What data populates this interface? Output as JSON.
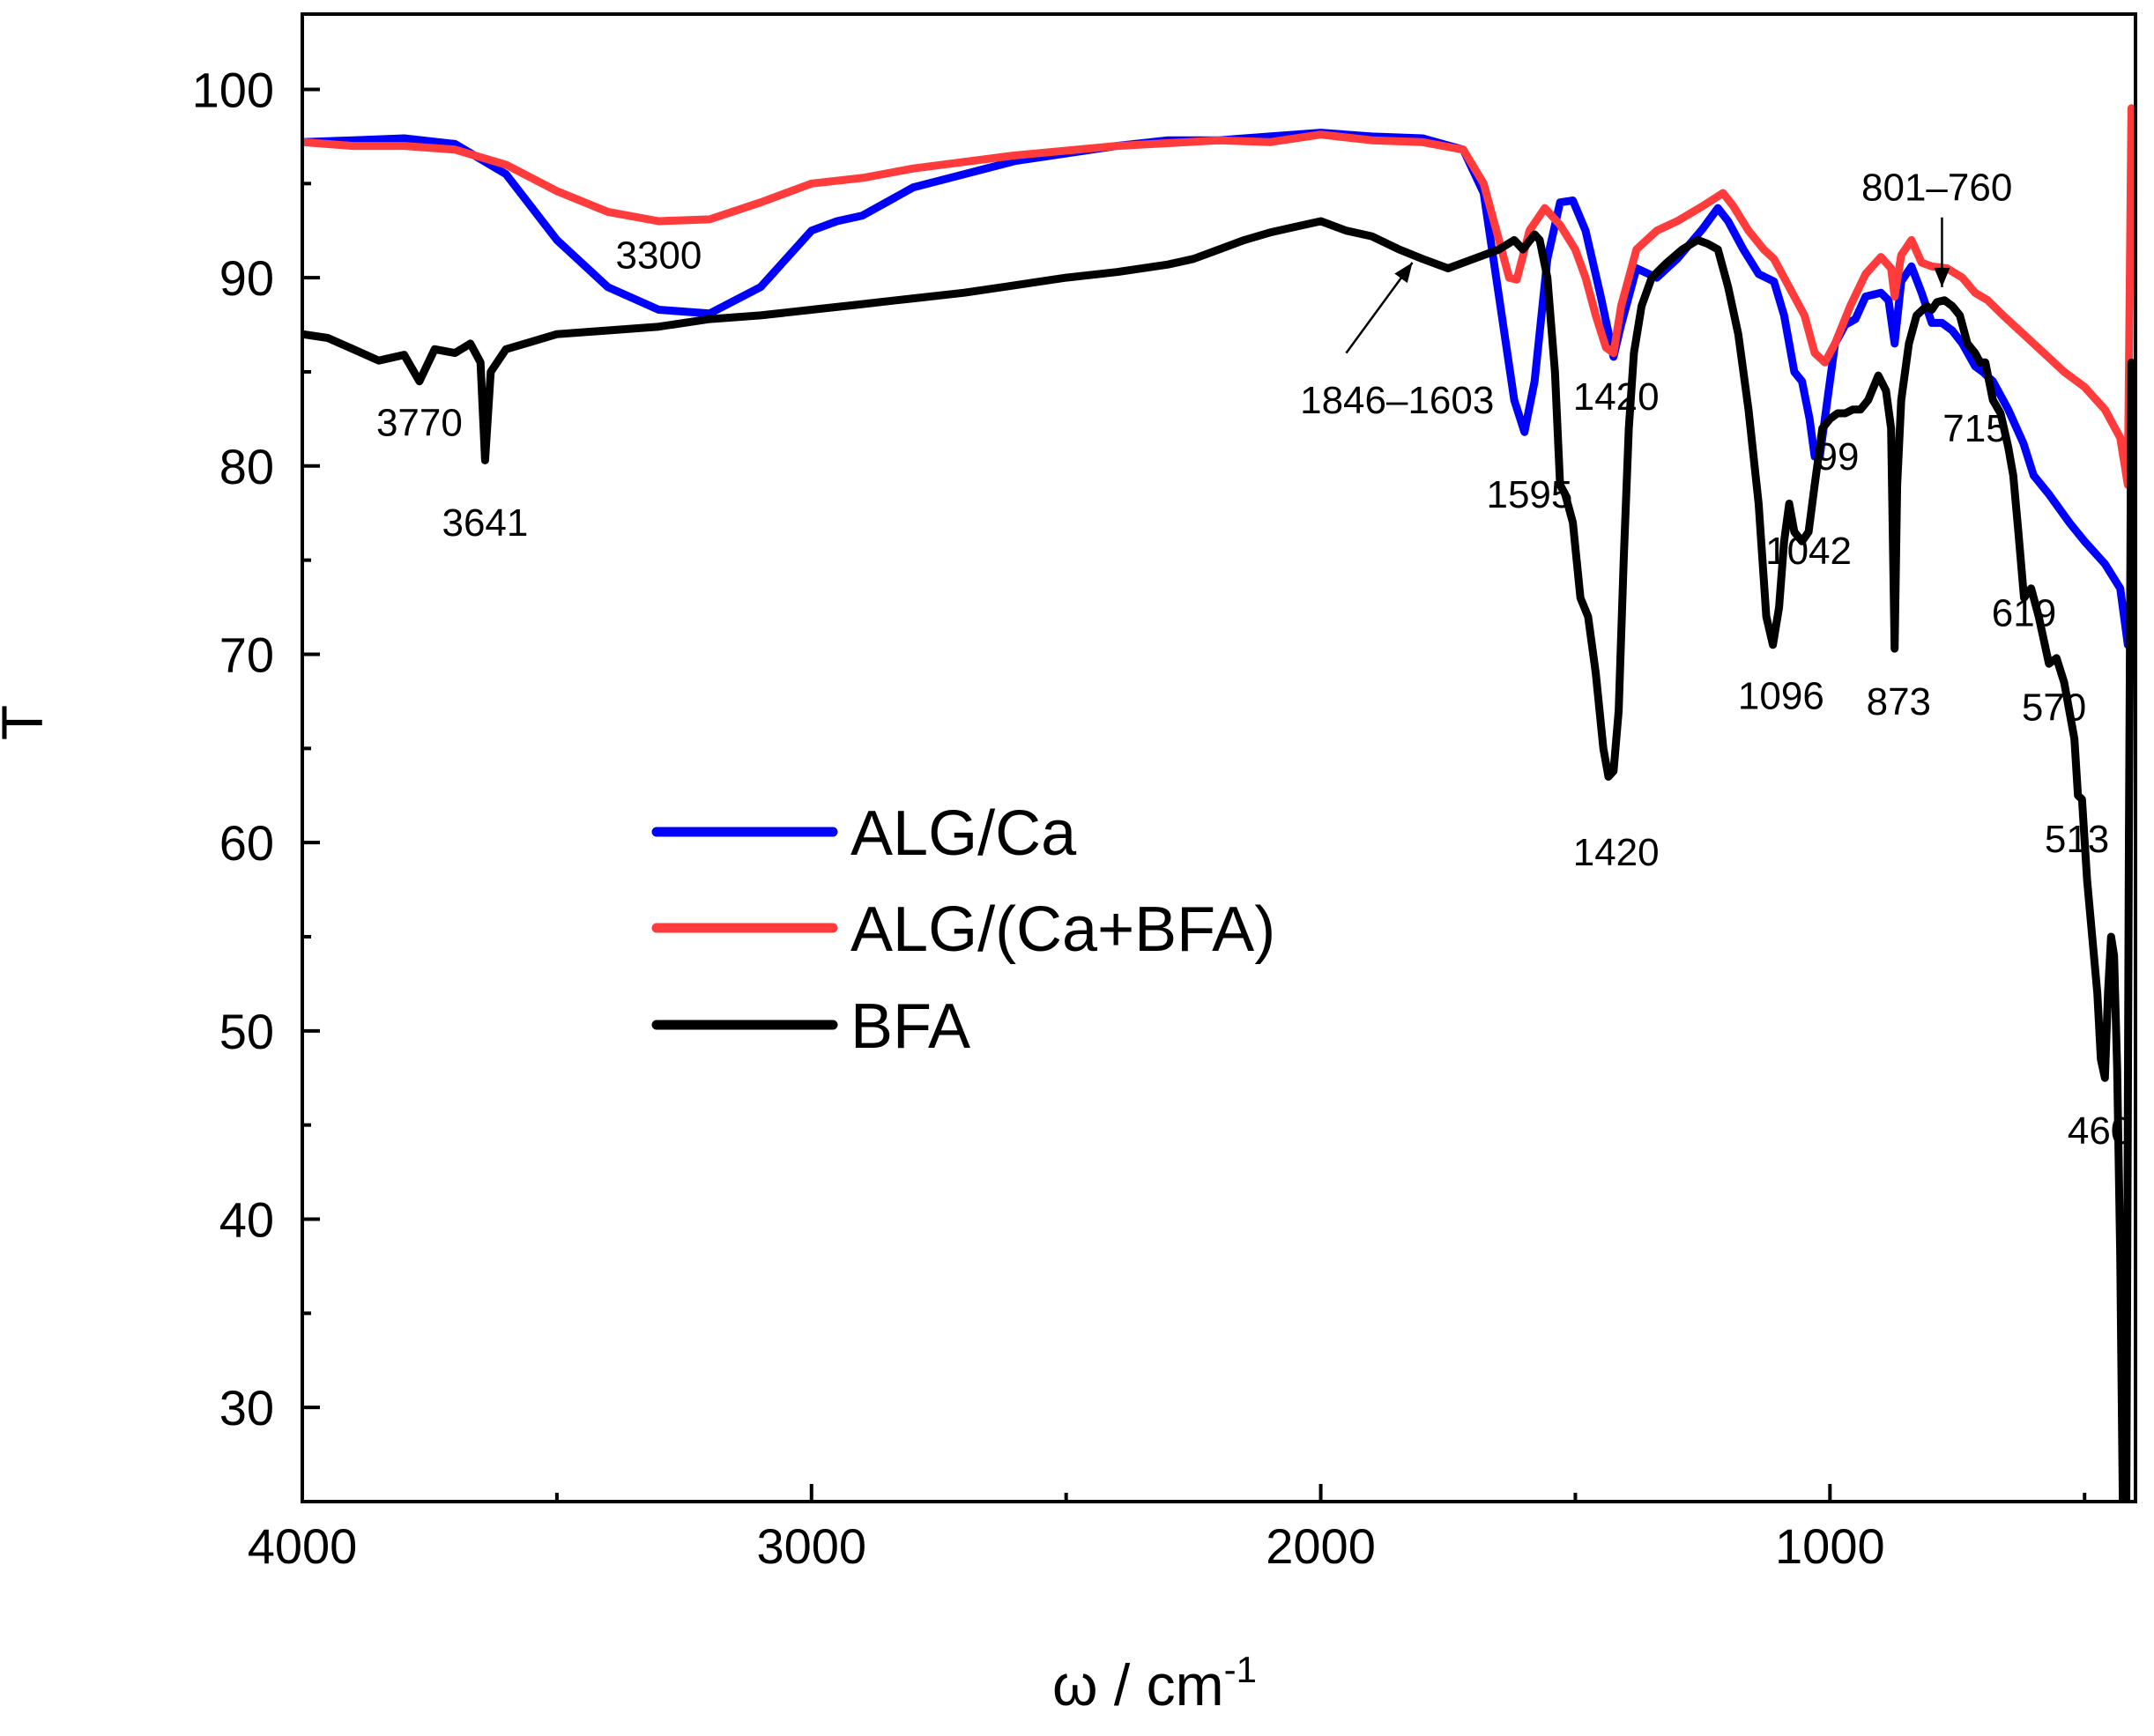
{
  "chart_data": {
    "type": "line",
    "title": "",
    "xlabel": "ω / cm",
    "xlabel_sup": "-1",
    "ylabel": "T",
    "xlim": [
      4000,
      400
    ],
    "ylim": [
      25,
      104
    ],
    "x_ticks": [
      4000,
      3000,
      2000,
      1000
    ],
    "x_tick_labels": [
      "4000",
      "3000",
      "2000",
      "1000"
    ],
    "y_ticks": [
      30,
      40,
      50,
      60,
      70,
      80,
      90,
      100
    ],
    "y_tick_labels": [
      "30",
      "40",
      "50",
      "60",
      "70",
      "80",
      "90",
      "100"
    ],
    "legend_position": "center-left",
    "series": [
      {
        "name": "ALG/Ca",
        "color": "#0000ff",
        "points": [
          [
            4000,
            97.2
          ],
          [
            3900,
            97.3
          ],
          [
            3800,
            97.4
          ],
          [
            3700,
            97.1
          ],
          [
            3600,
            95.5
          ],
          [
            3500,
            92.0
          ],
          [
            3400,
            89.5
          ],
          [
            3300,
            88.3
          ],
          [
            3200,
            88.1
          ],
          [
            3100,
            89.5
          ],
          [
            3000,
            92.5
          ],
          [
            2950,
            93.0
          ],
          [
            2900,
            93.3
          ],
          [
            2800,
            94.8
          ],
          [
            2600,
            96.2
          ],
          [
            2400,
            97.0
          ],
          [
            2300,
            97.3
          ],
          [
            2200,
            97.3
          ],
          [
            2100,
            97.5
          ],
          [
            2000,
            97.7
          ],
          [
            1900,
            97.5
          ],
          [
            1800,
            97.4
          ],
          [
            1720,
            96.8
          ],
          [
            1680,
            94.5
          ],
          [
            1650,
            89.0
          ],
          [
            1620,
            83.5
          ],
          [
            1600,
            81.8
          ],
          [
            1580,
            84.5
          ],
          [
            1555,
            91.0
          ],
          [
            1530,
            94.0
          ],
          [
            1505,
            94.1
          ],
          [
            1480,
            92.5
          ],
          [
            1450,
            89.0
          ],
          [
            1425,
            85.8
          ],
          [
            1410,
            87.5
          ],
          [
            1380,
            90.5
          ],
          [
            1340,
            90.0
          ],
          [
            1300,
            91.0
          ],
          [
            1250,
            92.6
          ],
          [
            1220,
            93.7
          ],
          [
            1200,
            93.0
          ],
          [
            1170,
            91.5
          ],
          [
            1140,
            90.2
          ],
          [
            1110,
            89.8
          ],
          [
            1090,
            88.0
          ],
          [
            1070,
            85.0
          ],
          [
            1055,
            84.5
          ],
          [
            1040,
            82.5
          ],
          [
            1030,
            80.5
          ],
          [
            1020,
            80.5
          ],
          [
            1005,
            83.5
          ],
          [
            990,
            86.5
          ],
          [
            970,
            87.5
          ],
          [
            950,
            87.8
          ],
          [
            930,
            89.0
          ],
          [
            900,
            89.2
          ],
          [
            885,
            88.8
          ],
          [
            873,
            86.5
          ],
          [
            860,
            89.8
          ],
          [
            840,
            90.6
          ],
          [
            820,
            89.2
          ],
          [
            800,
            87.6
          ],
          [
            780,
            87.6
          ],
          [
            760,
            87.2
          ],
          [
            740,
            86.5
          ],
          [
            715,
            85.3
          ],
          [
            700,
            85.0
          ],
          [
            680,
            84.5
          ],
          [
            650,
            83.0
          ],
          [
            620,
            81.2
          ],
          [
            600,
            79.5
          ],
          [
            570,
            78.5
          ],
          [
            530,
            77.0
          ],
          [
            500,
            76.0
          ],
          [
            460,
            74.8
          ],
          [
            430,
            73.5
          ],
          [
            415,
            70.5
          ]
        ]
      },
      {
        "name": "ALG/(Ca+BFA)",
        "color": "#ff3b3b",
        "points": [
          [
            4000,
            97.2
          ],
          [
            3900,
            97.0
          ],
          [
            3800,
            97.0
          ],
          [
            3700,
            96.8
          ],
          [
            3600,
            96.0
          ],
          [
            3500,
            94.6
          ],
          [
            3400,
            93.5
          ],
          [
            3300,
            93.0
          ],
          [
            3200,
            93.1
          ],
          [
            3100,
            94.0
          ],
          [
            3000,
            95.0
          ],
          [
            2900,
            95.3
          ],
          [
            2800,
            95.8
          ],
          [
            2600,
            96.5
          ],
          [
            2400,
            97.0
          ],
          [
            2200,
            97.3
          ],
          [
            2100,
            97.2
          ],
          [
            2000,
            97.6
          ],
          [
            1900,
            97.3
          ],
          [
            1800,
            97.2
          ],
          [
            1720,
            96.8
          ],
          [
            1680,
            95.0
          ],
          [
            1650,
            92.0
          ],
          [
            1630,
            90.0
          ],
          [
            1615,
            89.9
          ],
          [
            1590,
            92.5
          ],
          [
            1560,
            93.7
          ],
          [
            1530,
            92.8
          ],
          [
            1500,
            91.5
          ],
          [
            1480,
            90.0
          ],
          [
            1460,
            88.0
          ],
          [
            1440,
            86.3
          ],
          [
            1425,
            86.0
          ],
          [
            1410,
            88.5
          ],
          [
            1380,
            91.5
          ],
          [
            1340,
            92.5
          ],
          [
            1300,
            93.0
          ],
          [
            1250,
            93.8
          ],
          [
            1210,
            94.5
          ],
          [
            1190,
            93.8
          ],
          [
            1160,
            92.5
          ],
          [
            1130,
            91.5
          ],
          [
            1110,
            91.0
          ],
          [
            1080,
            89.5
          ],
          [
            1050,
            88.0
          ],
          [
            1030,
            86.0
          ],
          [
            1010,
            85.5
          ],
          [
            990,
            86.5
          ],
          [
            960,
            88.5
          ],
          [
            930,
            90.2
          ],
          [
            900,
            91.1
          ],
          [
            880,
            90.5
          ],
          [
            873,
            89.0
          ],
          [
            860,
            91.2
          ],
          [
            840,
            92.0
          ],
          [
            820,
            90.8
          ],
          [
            800,
            90.6
          ],
          [
            770,
            90.5
          ],
          [
            740,
            90.0
          ],
          [
            715,
            89.2
          ],
          [
            690,
            88.8
          ],
          [
            660,
            88.0
          ],
          [
            620,
            87.0
          ],
          [
            580,
            86.0
          ],
          [
            540,
            85.0
          ],
          [
            500,
            84.2
          ],
          [
            460,
            83.0
          ],
          [
            430,
            81.5
          ],
          [
            415,
            79.0
          ],
          [
            408,
            99.0
          ]
        ]
      },
      {
        "name": "BFA",
        "color": "#000000",
        "points": [
          [
            4000,
            87.0
          ],
          [
            3950,
            86.8
          ],
          [
            3900,
            86.2
          ],
          [
            3850,
            85.6
          ],
          [
            3800,
            85.9
          ],
          [
            3770,
            84.5
          ],
          [
            3740,
            86.2
          ],
          [
            3700,
            86.0
          ],
          [
            3670,
            86.5
          ],
          [
            3650,
            85.5
          ],
          [
            3641,
            80.3
          ],
          [
            3630,
            85.0
          ],
          [
            3600,
            86.2
          ],
          [
            3550,
            86.6
          ],
          [
            3500,
            87.0
          ],
          [
            3400,
            87.2
          ],
          [
            3300,
            87.4
          ],
          [
            3200,
            87.8
          ],
          [
            3100,
            88.0
          ],
          [
            3000,
            88.3
          ],
          [
            2900,
            88.6
          ],
          [
            2800,
            88.9
          ],
          [
            2700,
            89.2
          ],
          [
            2600,
            89.6
          ],
          [
            2500,
            90.0
          ],
          [
            2400,
            90.3
          ],
          [
            2300,
            90.7
          ],
          [
            2250,
            91.0
          ],
          [
            2200,
            91.5
          ],
          [
            2150,
            92.0
          ],
          [
            2100,
            92.4
          ],
          [
            2050,
            92.7
          ],
          [
            2000,
            93.0
          ],
          [
            1950,
            92.5
          ],
          [
            1900,
            92.2
          ],
          [
            1846,
            91.5
          ],
          [
            1800,
            91.0
          ],
          [
            1750,
            90.5
          ],
          [
            1700,
            91.0
          ],
          [
            1650,
            91.5
          ],
          [
            1620,
            92.0
          ],
          [
            1603,
            91.5
          ],
          [
            1580,
            92.3
          ],
          [
            1570,
            92.0
          ],
          [
            1555,
            90.0
          ],
          [
            1540,
            85.0
          ],
          [
            1530,
            79.0
          ],
          [
            1520,
            78.5
          ],
          [
            1505,
            77.0
          ],
          [
            1490,
            73.0
          ],
          [
            1475,
            72.0
          ],
          [
            1460,
            69.0
          ],
          [
            1445,
            65.0
          ],
          [
            1435,
            63.5
          ],
          [
            1425,
            63.8
          ],
          [
            1415,
            67.0
          ],
          [
            1405,
            75.0
          ],
          [
            1395,
            82.0
          ],
          [
            1385,
            86.0
          ],
          [
            1370,
            88.5
          ],
          [
            1350,
            90.0
          ],
          [
            1320,
            90.8
          ],
          [
            1290,
            91.5
          ],
          [
            1260,
            92.0
          ],
          [
            1240,
            91.8
          ],
          [
            1220,
            91.5
          ],
          [
            1200,
            89.5
          ],
          [
            1180,
            87.0
          ],
          [
            1160,
            83.0
          ],
          [
            1140,
            78.0
          ],
          [
            1125,
            72.0
          ],
          [
            1112,
            70.5
          ],
          [
            1100,
            72.5
          ],
          [
            1090,
            76.0
          ],
          [
            1080,
            78.0
          ],
          [
            1070,
            76.5
          ],
          [
            1055,
            76.0
          ],
          [
            1042,
            76.5
          ],
          [
            1030,
            79.0
          ],
          [
            1015,
            82.0
          ],
          [
            1000,
            82.5
          ],
          [
            985,
            82.8
          ],
          [
            970,
            82.8
          ],
          [
            955,
            83.0
          ],
          [
            940,
            83.0
          ],
          [
            925,
            83.5
          ],
          [
            905,
            84.8
          ],
          [
            890,
            84.0
          ],
          [
            880,
            82.0
          ],
          [
            873,
            70.3
          ],
          [
            868,
            79.0
          ],
          [
            860,
            83.5
          ],
          [
            845,
            86.5
          ],
          [
            830,
            88.0
          ],
          [
            810,
            88.5
          ],
          [
            800,
            88.3
          ],
          [
            790,
            88.7
          ],
          [
            775,
            88.8
          ],
          [
            760,
            88.5
          ],
          [
            745,
            88.0
          ],
          [
            730,
            86.5
          ],
          [
            715,
            86.0
          ],
          [
            705,
            85.5
          ],
          [
            695,
            85.5
          ],
          [
            680,
            83.5
          ],
          [
            665,
            82.8
          ],
          [
            650,
            81.0
          ],
          [
            640,
            79.5
          ],
          [
            630,
            76.5
          ],
          [
            619,
            73.0
          ],
          [
            605,
            73.5
          ],
          [
            590,
            72.0
          ],
          [
            570,
            69.5
          ],
          [
            555,
            69.8
          ],
          [
            540,
            68.5
          ],
          [
            530,
            67.0
          ],
          [
            520,
            65.5
          ],
          [
            513,
            62.5
          ],
          [
            505,
            62.3
          ],
          [
            495,
            58.0
          ],
          [
            485,
            55.0
          ],
          [
            475,
            52.0
          ],
          [
            468,
            48.5
          ],
          [
            460,
            47.5
          ],
          [
            454,
            52.0
          ],
          [
            448,
            55.0
          ],
          [
            442,
            54.0
          ],
          [
            436,
            48.0
          ],
          [
            430,
            38.0
          ],
          [
            425,
            25.0
          ],
          [
            418,
            25.0
          ],
          [
            413,
            60.0
          ],
          [
            408,
            85.5
          ]
        ]
      }
    ],
    "annotations": [
      {
        "text": "3300",
        "x": 3300,
        "y": 91.2
      },
      {
        "text": "3770",
        "x": 3770,
        "y": 82.3
      },
      {
        "text": "3641",
        "x": 3641,
        "y": 77.0
      },
      {
        "text": "1846–1603",
        "x": 1850,
        "y": 83.5
      },
      {
        "text": "1420",
        "x": 1420,
        "y": 83.7
      },
      {
        "text": "1595",
        "x": 1590,
        "y": 78.5
      },
      {
        "text": "1420",
        "x": 1420,
        "y": 59.5
      },
      {
        "text": "1096",
        "x": 1096,
        "y": 67.8
      },
      {
        "text": "1042",
        "x": 1042,
        "y": 75.5
      },
      {
        "text": "99",
        "x": 985,
        "y": 80.5
      },
      {
        "text": "715",
        "x": 715,
        "y": 82.0
      },
      {
        "text": "801–760",
        "x": 790,
        "y": 94.8
      },
      {
        "text": "873",
        "x": 865,
        "y": 67.5
      },
      {
        "text": "619",
        "x": 619,
        "y": 72.2
      },
      {
        "text": "570",
        "x": 560,
        "y": 67.2
      },
      {
        "text": "513",
        "x": 515,
        "y": 60.2
      },
      {
        "text": "460",
        "x": 470,
        "y": 44.7
      }
    ],
    "arrows": [
      {
        "from": [
          1950,
          86.0
        ],
        "to": [
          1820,
          90.8
        ]
      },
      {
        "from": [
          780,
          93.2
        ],
        "to": [
          780,
          89.5
        ]
      }
    ]
  }
}
